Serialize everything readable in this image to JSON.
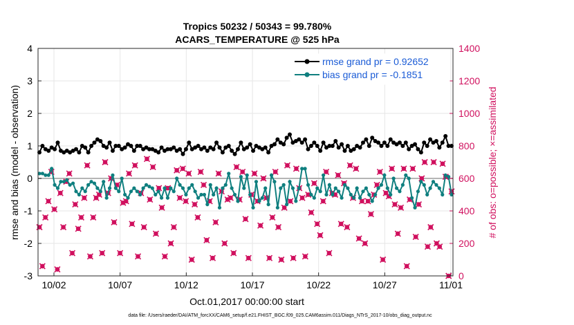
{
  "chart_data": {
    "type": "line",
    "title": [
      "Tropics 50232 / 50343 = 99.780%",
      "ACARS_TEMPERATURE @ 525 hPa"
    ],
    "xlabel": "Oct.01,2017 00:00:00 start",
    "ylabel_left": "rmse and bias (model - observation)",
    "ylabel_right": "# of obs: o=possible; ×=assimilated",
    "ylim_left": [
      -3,
      4
    ],
    "ylim_right": [
      0,
      1400
    ],
    "yticks_left": [
      "-3",
      "-2",
      "-1",
      "0",
      "1",
      "2",
      "3",
      "4"
    ],
    "yticks_right": [
      "0",
      "200",
      "400",
      "600",
      "800",
      "1000",
      "1200",
      "1400"
    ],
    "xticks": [
      "10/02",
      "10/07",
      "10/12",
      "10/17",
      "10/22",
      "10/27",
      "11/01"
    ],
    "footer": "data file: /Users/raeder/DAI/ATM_forcXX/CAM6_setup/f.e21.FHIST_BGC.f09_025.CAM6assim.011/Diags_NTrS_2017-10/obs_diag_output.nc",
    "series": [
      {
        "name": "rmse grand pr = 0.92652",
        "color": "#000000",
        "axis": "left",
        "values": [
          0.8,
          1.0,
          0.9,
          0.85,
          0.95,
          0.9,
          1.1,
          0.85,
          0.8,
          0.85,
          0.8,
          0.85,
          0.9,
          0.8,
          1.0,
          0.95,
          0.8,
          1.0,
          1.1,
          1.2,
          1.15,
          1.0,
          0.95,
          1.1,
          0.85,
          1.0,
          1.0,
          0.9,
          0.95,
          1.05,
          1.0,
          0.85,
          1.0,
          1.0,
          0.9,
          0.95,
          0.9,
          0.9,
          0.85,
          0.8,
          0.95,
          0.85,
          0.9,
          0.9,
          0.95,
          0.85,
          0.9,
          0.75,
          0.9,
          1.1,
          0.9,
          0.95,
          1.0,
          0.9,
          0.95,
          0.85,
          0.95,
          0.9,
          1.1,
          0.95,
          0.8,
          0.95,
          1.0,
          0.85,
          0.75,
          0.9,
          1.1,
          0.9,
          0.95,
          1.05,
          0.85,
          1.0,
          0.95,
          0.9,
          0.95,
          0.8,
          1.0,
          1.05,
          1.2,
          1.1,
          1.05,
          1.25,
          1.35,
          1.1,
          1.15,
          1.2,
          1.1,
          1.2,
          0.9,
          1.0,
          1.1,
          1.0,
          0.85,
          1.1,
          0.95,
          1.0,
          1.0,
          1.15,
          0.95,
          1.05,
          0.85,
          1.0,
          0.85,
          0.9,
          1.0,
          0.95,
          1.1,
          1.2,
          1.0,
          1.25,
          1.15,
          1.1,
          1.0,
          1.1,
          1.0,
          1.2,
          1.1,
          1.05,
          1.1,
          1.0,
          1.1,
          0.9,
          1.0,
          1.05,
          0.9,
          0.8,
          1.1,
          1.0,
          1.2,
          1.1,
          1.15,
          0.95,
          1.1,
          1.3,
          1.0,
          1.0
        ]
      },
      {
        "name": "bias grand pr = -0.1851",
        "color": "#0f7f7f",
        "axis": "left",
        "values": [
          0.15,
          0.15,
          0.1,
          0.1,
          0.3,
          -0.2,
          -0.3,
          -0.1,
          -0.1,
          -0.05,
          -0.2,
          -0.15,
          -0.4,
          -0.5,
          -0.3,
          -0.4,
          -0.2,
          -0.1,
          -0.15,
          -0.3,
          -0.4,
          -0.1,
          -0.6,
          -0.3,
          0.1,
          -0.3,
          -0.4,
          0.0,
          -0.5,
          -0.6,
          -0.4,
          -0.3,
          -0.4,
          -0.5,
          -0.3,
          -0.2,
          -0.25,
          -0.3,
          -0.5,
          -0.4,
          -0.6,
          -0.3,
          -0.6,
          -0.3,
          -0.4,
          0.0,
          -0.2,
          -0.3,
          -0.5,
          -0.3,
          -0.2,
          -0.4,
          -0.6,
          -0.5,
          -0.5,
          -0.8,
          -0.2,
          -0.5,
          -0.3,
          -0.9,
          -0.3,
          -0.2,
          0.15,
          -0.3,
          -0.5,
          -0.7,
          0.05,
          -0.3,
          0.1,
          -0.5,
          -0.9,
          -0.1,
          -0.7,
          -0.6,
          -0.3,
          -0.8,
          0.1,
          -0.1,
          -0.9,
          -0.3,
          -0.2,
          -0.8,
          -0.1,
          -0.3,
          -0.7,
          -0.3,
          0.3,
          0.3,
          -0.2,
          -0.5,
          -0.6,
          -0.3,
          -0.4,
          0.1,
          -0.5,
          -0.2,
          -0.5,
          -0.3,
          -0.4,
          -0.6,
          -0.2,
          -0.3,
          -0.5,
          -0.6,
          -0.3,
          -0.6,
          -0.4,
          -0.3,
          -0.5,
          -0.7,
          -0.5,
          -0.3,
          -0.2,
          0.1,
          -0.3,
          -0.5,
          0.0,
          -0.3,
          -0.4,
          -0.2,
          0.1,
          0.0,
          -0.6,
          -0.9,
          -0.4,
          -0.1,
          -0.2,
          -0.5,
          -0.3,
          -0.1,
          -0.2,
          -0.3,
          -0.5,
          0.1,
          0.05,
          -0.5
        ]
      },
      {
        "name": "# of obs assimilated",
        "color": "#d0105e",
        "axis": "right",
        "values": [
          300,
          60,
          360,
          460,
          640,
          410,
          40,
          510,
          300,
          580,
          630,
          140,
          440,
          290,
          360,
          480,
          680,
          120,
          360,
          480,
          500,
          140,
          700,
          510,
          600,
          330,
          560,
          140,
          450,
          460,
          630,
          320,
          680,
          120,
          510,
          300,
          720,
          470,
          670,
          260,
          540,
          420,
          120,
          540,
          200,
          300,
          650,
          480,
          660,
          460,
          630,
          100,
          440,
          360,
          640,
          560,
          220,
          460,
          110,
          330,
          630,
          520,
          200,
          470,
          480,
          140,
          670,
          470,
          640,
          350,
          110,
          500,
          630,
          460,
          310,
          600,
          480,
          110,
          360,
          640,
          300,
          100,
          420,
          680,
          460,
          110,
          660,
          540,
          480,
          120,
          500,
          390,
          570,
          320,
          250,
          460,
          640,
          140,
          510,
          500,
          620,
          320,
          570,
          300,
          680,
          480,
          660,
          230,
          460,
          200,
          460,
          380,
          500,
          560,
          640,
          100,
          510,
          490,
          660,
          440,
          260,
          420,
          660,
          60,
          470,
          660,
          240,
          440,
          600,
          700,
          180,
          300,
          700,
          200,
          180,
          690,
          610,
          0,
          520
        ]
      }
    ]
  }
}
